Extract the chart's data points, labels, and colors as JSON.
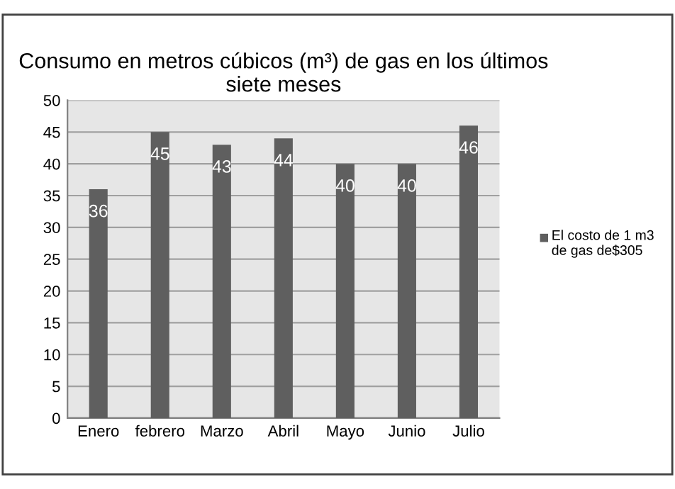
{
  "chart_data": {
    "type": "bar",
    "title": "Consumo en metros cúbicos (m³) de gas en los últimos siete meses",
    "categories": [
      "Enero",
      "febrero",
      "Marzo",
      "Abril",
      "Mayo",
      "Junio",
      "Julio"
    ],
    "series": [
      {
        "name": "El costo de 1 m3  de gas de$305",
        "color": "#5f5f5f",
        "values": [
          36,
          45,
          43,
          44,
          40,
          40,
          46
        ]
      }
    ],
    "ylim": [
      0,
      50
    ],
    "yticks": [
      0,
      5,
      10,
      15,
      20,
      25,
      30,
      35,
      40,
      45,
      50
    ],
    "grid": "y",
    "legend": "right",
    "data_labels": true
  }
}
